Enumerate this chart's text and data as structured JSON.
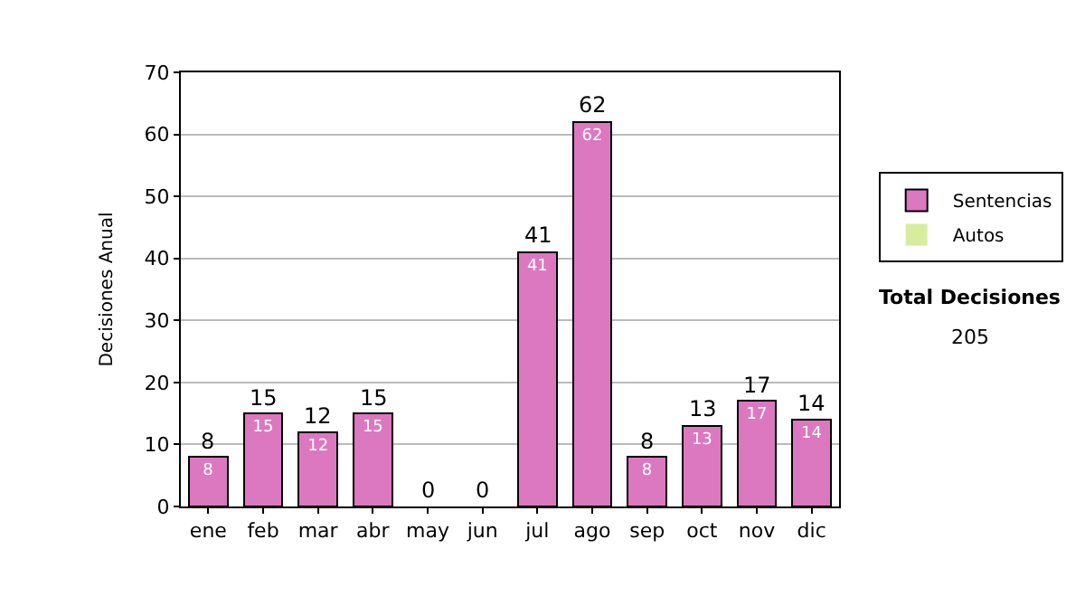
{
  "chart_data": {
    "type": "bar",
    "ylabel": "Decisiones Anual",
    "categories": [
      "ene",
      "feb",
      "mar",
      "abr",
      "may",
      "jun",
      "jul",
      "ago",
      "sep",
      "oct",
      "nov",
      "dic"
    ],
    "series": [
      {
        "name": "Sentencias",
        "color": "#dc78c0",
        "values": [
          8,
          15,
          12,
          15,
          0,
          0,
          41,
          62,
          8,
          13,
          17,
          14
        ],
        "value_labels": [
          "8",
          "15",
          "12",
          "15",
          null,
          null,
          "41",
          "62",
          "8",
          "13",
          "17",
          "14"
        ]
      },
      {
        "name": "Autos",
        "color": "#d8eca0",
        "values": [
          0,
          0,
          0,
          0,
          0,
          0,
          0,
          0,
          0,
          0,
          0,
          0
        ]
      }
    ],
    "stacked": true,
    "totals": [
      "8",
      "15",
      "12",
      "15",
      "0",
      "0",
      "41",
      "62",
      "8",
      "13",
      "17",
      "14"
    ],
    "ylim": [
      0,
      70
    ],
    "yticks": [
      0,
      10,
      20,
      30,
      40,
      50,
      60,
      70
    ],
    "grid": "y",
    "legend": "right",
    "annotations": [
      "Total Decisiones",
      "205"
    ]
  }
}
